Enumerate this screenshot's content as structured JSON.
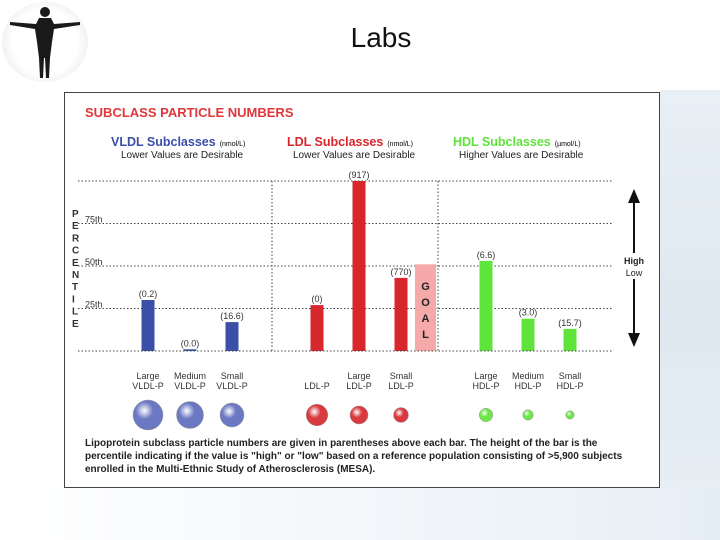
{
  "slide": {
    "title": "Labs",
    "logo_icon": "human-figure-icon"
  },
  "panel": {
    "title": "SUBCLASS PARTICLE NUMBERS",
    "groups": [
      {
        "title": "VLDL Subclasses",
        "unit": "(nmol/L)",
        "subtitle": "Lower Values are Desirable",
        "color": "#3b4fa8"
      },
      {
        "title": "LDL Subclasses",
        "unit": "(nmol/L)",
        "subtitle": "Lower Values are Desirable",
        "color": "#d7262c"
      },
      {
        "title": "HDL Subclasses",
        "unit": "(µmol/L)",
        "subtitle": "Higher Values are Desirable",
        "color": "#5fe43c"
      }
    ],
    "y_letters": [
      "P",
      "E",
      "R",
      "C",
      "E",
      "N",
      "T",
      "I",
      "L",
      "E"
    ],
    "goal_letters": [
      "G",
      "O",
      "A",
      "L"
    ],
    "arrow_labels": {
      "high": "High",
      "low": "Low"
    },
    "footnote": "Lipoprotein subclass particle numbers are given in parentheses above each bar. The height of the bar is the percentile indicating if the value is \"high\" or \"low\" based on a reference population consisting of >5,900 subjects enrolled in the Multi-Ethnic Study of Atherosclerosis (MESA)."
  },
  "chart_data": {
    "type": "bar",
    "ylabel": "PERCENTILE",
    "ylim": [
      0,
      100
    ],
    "yticks": [
      {
        "value": 25,
        "label": "25th"
      },
      {
        "value": 50,
        "label": "50th"
      },
      {
        "value": 75,
        "label": "75th"
      }
    ],
    "grid": true,
    "goal": {
      "group": "LDL",
      "percentile": 51
    },
    "bars": [
      {
        "group": "VLDL",
        "label": [
          "Large",
          "VLDL-P"
        ],
        "value_label": "(0.2)",
        "percentile": 30,
        "color": "#3b4fa8",
        "sphere_size": 1.0
      },
      {
        "group": "VLDL",
        "label": [
          "Medium",
          "VLDL-P"
        ],
        "value_label": "(0.0)",
        "percentile": 1,
        "color": "#3b4fa8",
        "sphere_size": 0.9
      },
      {
        "group": "VLDL",
        "label": [
          "Small",
          "VLDL-P"
        ],
        "value_label": "(16.6)",
        "percentile": 17,
        "color": "#3b4fa8",
        "sphere_size": 0.8
      },
      {
        "group": "LDL",
        "label": [
          "",
          "LDL-P"
        ],
        "value_label": "(0)",
        "percentile": 27,
        "color": "#d7262c",
        "sphere_size": 0.72
      },
      {
        "group": "LDL",
        "label": [
          "Large",
          "LDL-P"
        ],
        "value_label": "(917)",
        "percentile": 100,
        "color": "#d7262c",
        "sphere_size": 0.6
      },
      {
        "group": "LDL",
        "label": [
          "Small",
          "LDL-P"
        ],
        "value_label": "(770)",
        "percentile": 43,
        "color": "#d7262c",
        "sphere_size": 0.5
      },
      {
        "group": "HDL",
        "label": [
          "Large",
          "HDL-P"
        ],
        "value_label": "(6.6)",
        "percentile": 53,
        "color": "#5fe43c",
        "sphere_size": 0.45
      },
      {
        "group": "HDL",
        "label": [
          "Medium",
          "HDL-P"
        ],
        "value_label": "(3.0)",
        "percentile": 19,
        "color": "#5fe43c",
        "sphere_size": 0.35
      },
      {
        "group": "HDL",
        "label": [
          "Small",
          "HDL-P"
        ],
        "value_label": "(15.7)",
        "percentile": 13,
        "color": "#5fe43c",
        "sphere_size": 0.28
      }
    ]
  }
}
